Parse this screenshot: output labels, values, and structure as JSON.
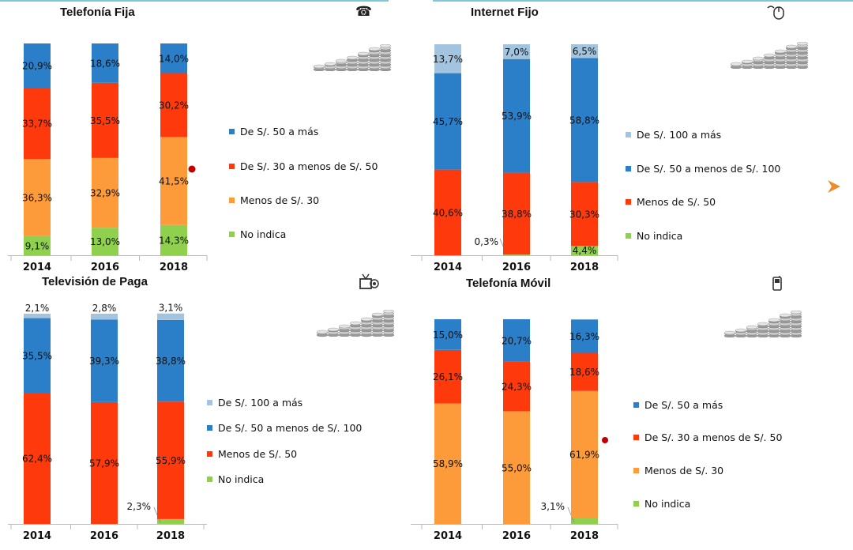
{
  "colors": {
    "light_blue": "#a2c4df",
    "blue": "#2b7fc8",
    "red": "#fe3a0c",
    "orange": "#fd9a3a",
    "green": "#8fd14f",
    "dot": "#c00000",
    "arrow": "#f08a2a"
  },
  "chart_data": [
    {
      "type": "bar",
      "stacked": true,
      "title": "Telefonía Fija",
      "icon": "telephone-icon",
      "categories": [
        "2014",
        "2016",
        "2018"
      ],
      "series": [
        {
          "name": "No indica",
          "color": "#8fd14f",
          "values": [
            9.1,
            13.0,
            14.3
          ],
          "labels": [
            "9,1%",
            "13,0%",
            "14,3%"
          ]
        },
        {
          "name": "Menos de S/. 30",
          "color": "#fd9a3a",
          "values": [
            36.3,
            32.9,
            41.5
          ],
          "labels": [
            "36,3%",
            "32,9%",
            "41,5%"
          ]
        },
        {
          "name": "De S/. 30 a menos de S/. 50",
          "color": "#fe3a0c",
          "values": [
            33.7,
            35.5,
            30.2
          ],
          "labels": [
            "33,7%",
            "35,5%",
            "30,2%"
          ]
        },
        {
          "name": "De S/. 50 a más",
          "color": "#2b7fc8",
          "values": [
            20.9,
            18.6,
            14.0
          ],
          "labels": [
            "20,9%",
            "18,6%",
            "14,0%"
          ]
        }
      ],
      "legend": [
        "De S/. 50 a más",
        "De S/. 30 a menos de S/. 50",
        "Menos de S/. 30",
        "No indica"
      ],
      "ylim": [
        0,
        100
      ]
    },
    {
      "type": "bar",
      "stacked": true,
      "title": "Internet Fijo",
      "icon": "mouse-icon",
      "categories": [
        "2014",
        "2016",
        "2018"
      ],
      "series": [
        {
          "name": "No indica",
          "color": "#8fd14f",
          "values": [
            0,
            0.3,
            4.4
          ],
          "labels": [
            "",
            "0,3%",
            "4,4%"
          ]
        },
        {
          "name": "Menos de S/. 50",
          "color": "#fe3a0c",
          "values": [
            40.6,
            38.8,
            30.3
          ],
          "labels": [
            "40,6%",
            "38,8%",
            "30,3%"
          ]
        },
        {
          "name": "De S/. 50 a menos de S/. 100",
          "color": "#2b7fc8",
          "values": [
            45.7,
            53.9,
            58.8
          ],
          "labels": [
            "45,7%",
            "53,9%",
            "58,8%"
          ]
        },
        {
          "name": "De S/. 100 a más",
          "color": "#a2c4df",
          "values": [
            13.7,
            7.0,
            6.5
          ],
          "labels": [
            "13,7%",
            "7,0%",
            "6,5%"
          ]
        }
      ],
      "legend": [
        "De S/. 100 a más",
        "De S/. 50 a menos de S/. 100",
        "Menos de S/. 50",
        "No indica"
      ],
      "ylim": [
        0,
        100
      ]
    },
    {
      "type": "bar",
      "stacked": true,
      "title": "Televisión de Paga",
      "icon": "tv-icon",
      "categories": [
        "2014",
        "2016",
        "2018"
      ],
      "series": [
        {
          "name": "No indica",
          "color": "#8fd14f",
          "values": [
            0,
            0,
            2.3
          ],
          "labels": [
            "",
            "",
            "2,3%"
          ]
        },
        {
          "name": "Menos de S/. 50",
          "color": "#fe3a0c",
          "values": [
            62.4,
            57.9,
            55.9
          ],
          "labels": [
            "62,4%",
            "57,9%",
            "55,9%"
          ]
        },
        {
          "name": "De S/. 50 a menos de S/. 100",
          "color": "#2b7fc8",
          "values": [
            35.5,
            39.3,
            38.8
          ],
          "labels": [
            "35,5%",
            "39,3%",
            "38,8%"
          ]
        },
        {
          "name": "De S/. 100 a más",
          "color": "#a2c4df",
          "values": [
            2.1,
            2.8,
            3.1
          ],
          "labels": [
            "2,1%",
            "2,8%",
            "3,1%"
          ]
        }
      ],
      "legend": [
        "De S/. 100 a más",
        "De S/. 50 a menos de S/. 100",
        "Menos de S/. 50",
        "No indica"
      ],
      "ylim": [
        0,
        100
      ]
    },
    {
      "type": "bar",
      "stacked": true,
      "title": "Telefonía Móvil",
      "icon": "mobile-phone-icon",
      "categories": [
        "2014",
        "2016",
        "2018"
      ],
      "series": [
        {
          "name": "No indica",
          "color": "#8fd14f",
          "values": [
            0,
            0,
            3.1
          ],
          "labels": [
            "",
            "",
            "3,1%"
          ]
        },
        {
          "name": "Menos de S/. 30",
          "color": "#fd9a3a",
          "values": [
            58.9,
            55.0,
            61.9
          ],
          "labels": [
            "58,9%",
            "55,0%",
            "61,9%"
          ]
        },
        {
          "name": "De S/. 30 a menos de S/. 50",
          "color": "#fe3a0c",
          "values": [
            26.1,
            24.3,
            18.6
          ],
          "labels": [
            "26,1%",
            "24,3%",
            "18,6%"
          ]
        },
        {
          "name": "De S/. 50 a más",
          "color": "#2b7fc8",
          "values": [
            15.0,
            20.7,
            16.3
          ],
          "labels": [
            "15,0%",
            "20,7%",
            "16,3%"
          ]
        }
      ],
      "legend": [
        "De S/. 50 a más",
        "De S/. 30 a menos de S/. 50",
        "Menos de S/. 30",
        "No indica"
      ],
      "ylim": [
        0,
        100
      ]
    }
  ]
}
